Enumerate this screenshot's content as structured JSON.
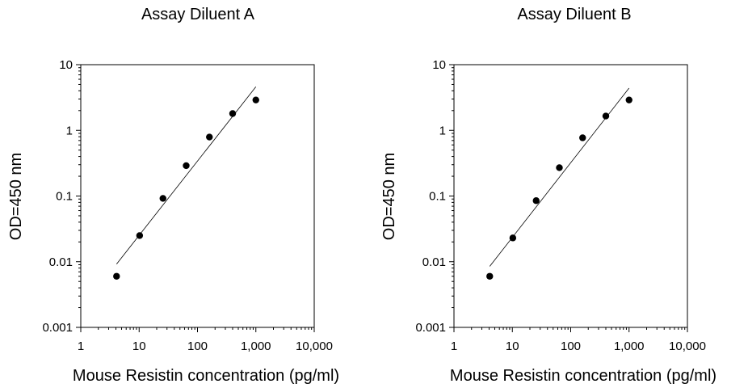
{
  "chart_data": [
    {
      "type": "scatter",
      "title": "Assay Diluent A",
      "xlabel": "Mouse Resistin concentration (pg/ml)",
      "ylabel": "OD=450 nm",
      "xscale": "log",
      "yscale": "log",
      "xlim": [
        1,
        10000
      ],
      "ylim": [
        0.001,
        10
      ],
      "xticks": [
        "1",
        "10",
        "100",
        "1,000",
        "10,000"
      ],
      "yticks": [
        "0.001",
        "0.01",
        "0.1",
        "1",
        "10"
      ],
      "grid": false,
      "points": {
        "x": [
          4.1,
          10.2,
          25.6,
          64,
          160,
          400,
          1000
        ],
        "y": [
          0.006,
          0.025,
          0.092,
          0.29,
          0.79,
          1.8,
          2.9
        ]
      },
      "fit_line": {
        "x": [
          4.1,
          1000
        ],
        "y": [
          0.0092,
          4.6
        ]
      }
    },
    {
      "type": "scatter",
      "title": "Assay Diluent B",
      "xlabel": "Mouse Resistin concentration (pg/ml)",
      "ylabel": "OD=450 nm",
      "xscale": "log",
      "yscale": "log",
      "xlim": [
        1,
        10000
      ],
      "ylim": [
        0.001,
        10
      ],
      "xticks": [
        "1",
        "10",
        "100",
        "1,000",
        "10,000"
      ],
      "yticks": [
        "0.001",
        "0.01",
        "0.1",
        "1",
        "10"
      ],
      "grid": false,
      "points": {
        "x": [
          4.1,
          10.2,
          25.6,
          64,
          160,
          400,
          1000
        ],
        "y": [
          0.006,
          0.023,
          0.085,
          0.27,
          0.77,
          1.65,
          2.9
        ]
      },
      "fit_line": {
        "x": [
          4.1,
          1000
        ],
        "y": [
          0.0085,
          4.4
        ]
      }
    }
  ]
}
